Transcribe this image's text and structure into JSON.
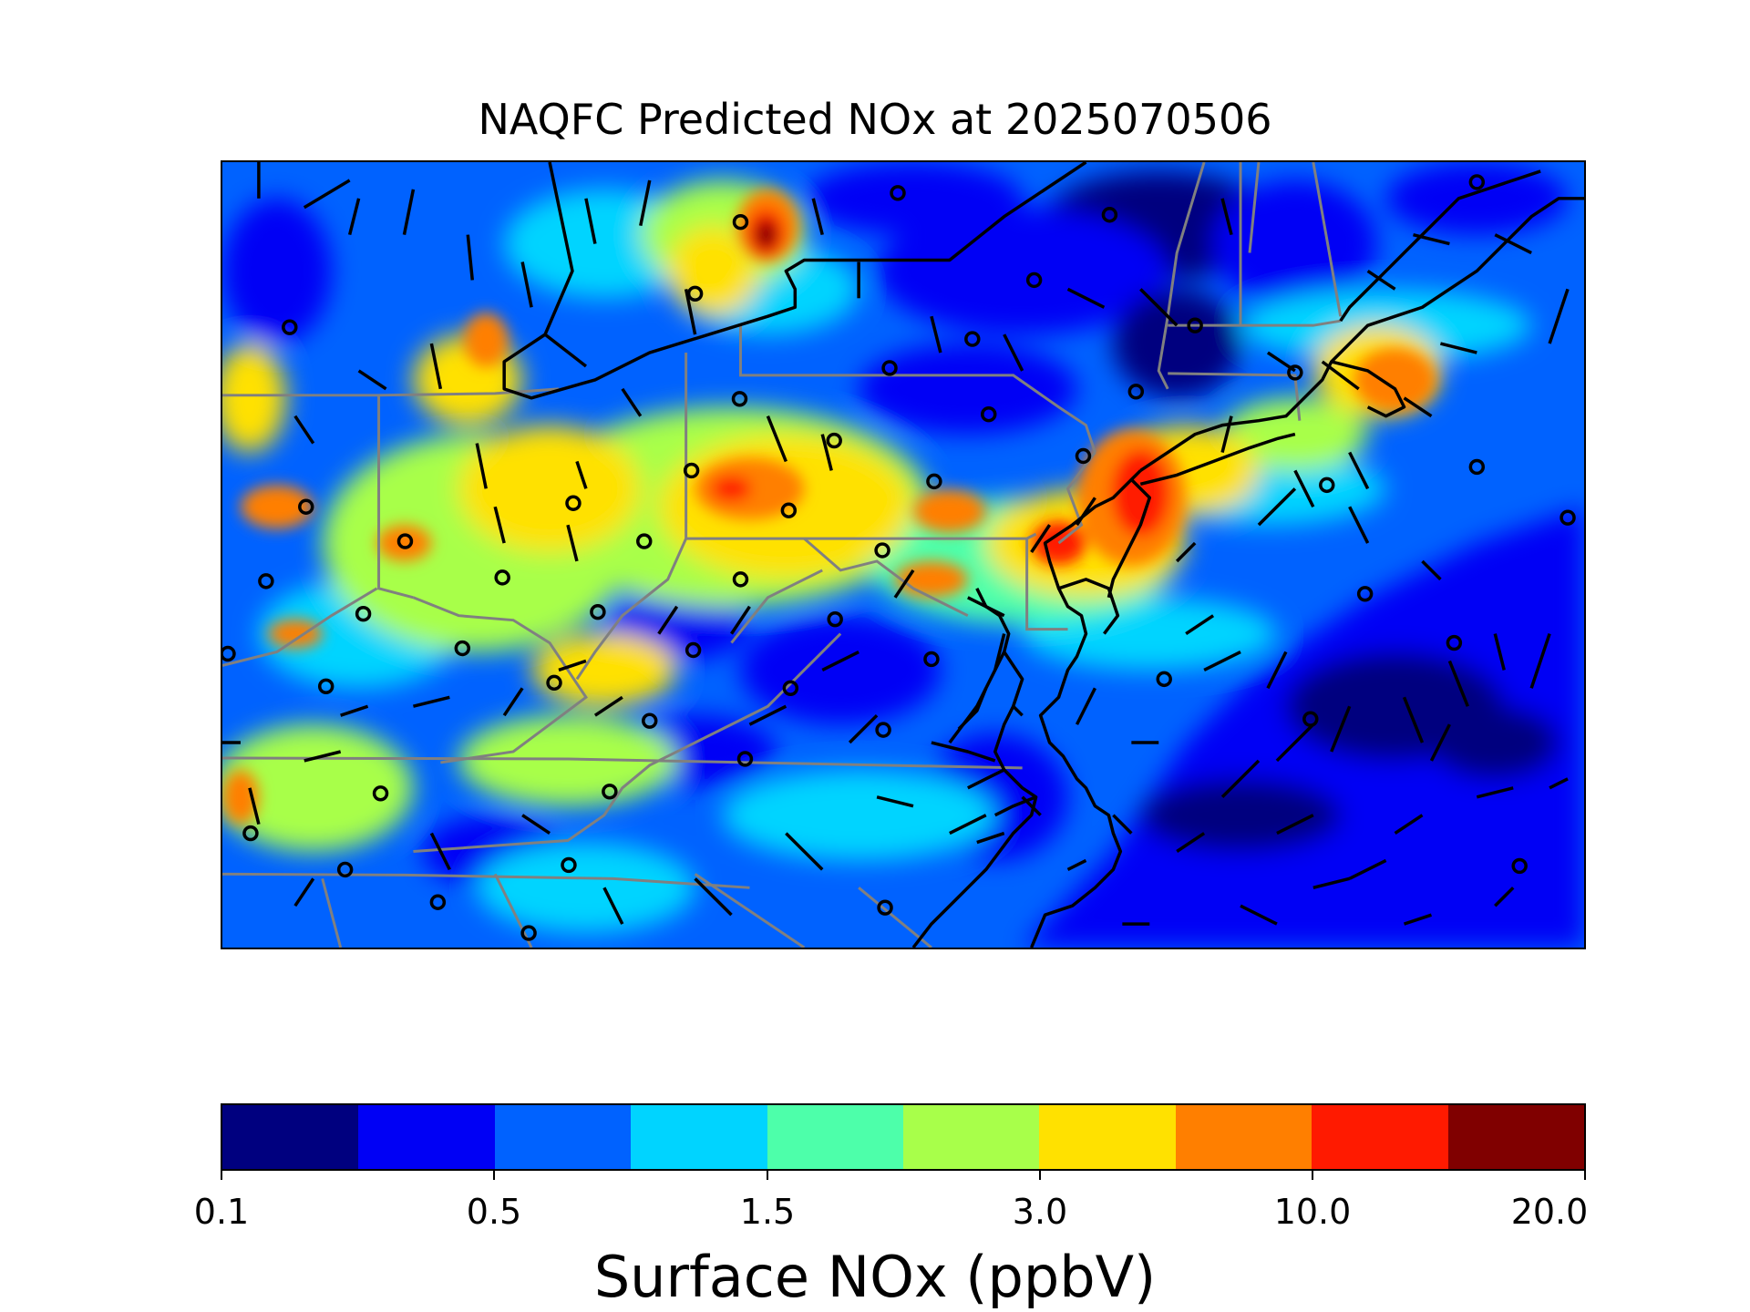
{
  "title": "NAQFC Predicted NOx at 2025070506",
  "colorbar": {
    "label": "Surface NOx (ppbV)",
    "colors": [
      "#00007f",
      "#0000f5",
      "#0062ff",
      "#00d4ff",
      "#4dffaa",
      "#a8ff4a",
      "#ffe100",
      "#ff7f00",
      "#ff1a00",
      "#800000"
    ],
    "tick_labels": [
      "0.1",
      "0.5",
      "1.5",
      "3.0",
      "10.0",
      "20.0"
    ]
  },
  "map": {
    "background_level": "Surface NOx (ppbV) field",
    "boundary_colors": {
      "state": "#808080",
      "coast": "#000000",
      "wind": "#000000"
    }
  }
}
